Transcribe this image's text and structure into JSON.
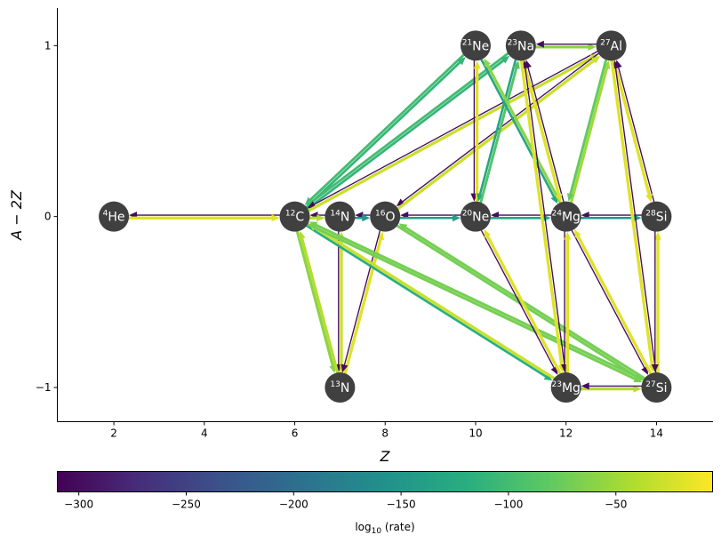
{
  "chart_data": {
    "type": "network",
    "xlabel": "Z",
    "ylabel": "A − 2Z",
    "xlim": [
      0.75,
      15.25
    ],
    "ylim": [
      -1.2,
      1.22
    ],
    "xticks": [
      2,
      4,
      6,
      8,
      10,
      12,
      14
    ],
    "yticks": [
      -1,
      0,
      1
    ],
    "nodes": [
      {
        "id": "he4",
        "iso": "He",
        "mass": "4",
        "z": 2,
        "n_minus_z": 0
      },
      {
        "id": "c12",
        "iso": "C",
        "mass": "12",
        "z": 6,
        "n_minus_z": 0
      },
      {
        "id": "n13",
        "iso": "N",
        "mass": "13",
        "z": 7,
        "n_minus_z": -1
      },
      {
        "id": "n14",
        "iso": "N",
        "mass": "14",
        "z": 7,
        "n_minus_z": 0
      },
      {
        "id": "o16",
        "iso": "O",
        "mass": "16",
        "z": 8,
        "n_minus_z": 0
      },
      {
        "id": "ne20",
        "iso": "Ne",
        "mass": "20",
        "z": 10,
        "n_minus_z": 0
      },
      {
        "id": "ne21",
        "iso": "Ne",
        "mass": "21",
        "z": 10,
        "n_minus_z": 1
      },
      {
        "id": "na23",
        "iso": "Na",
        "mass": "23",
        "z": 11,
        "n_minus_z": 1
      },
      {
        "id": "mg23",
        "iso": "Mg",
        "mass": "23",
        "z": 12,
        "n_minus_z": -1
      },
      {
        "id": "mg24",
        "iso": "Mg",
        "mass": "24",
        "z": 12,
        "n_minus_z": 0
      },
      {
        "id": "al27",
        "iso": "Al",
        "mass": "27",
        "z": 13,
        "n_minus_z": 1
      },
      {
        "id": "si27",
        "iso": "Si",
        "mass": "27",
        "z": 14,
        "n_minus_z": -1
      },
      {
        "id": "si28",
        "iso": "Si",
        "mass": "28",
        "z": 14,
        "n_minus_z": 0
      }
    ],
    "links": [
      {
        "from": "c12",
        "to": "he4",
        "log_rate": -300
      },
      {
        "from": "he4",
        "to": "c12",
        "log_rate": -20
      },
      {
        "from": "n14",
        "to": "c12",
        "log_rate": -300
      },
      {
        "from": "c12",
        "to": "n14",
        "log_rate": -40
      },
      {
        "from": "o16",
        "to": "n14",
        "log_rate": -300
      },
      {
        "from": "n14",
        "to": "o16",
        "log_rate": -150
      },
      {
        "from": "ne20",
        "to": "o16",
        "log_rate": -300
      },
      {
        "from": "o16",
        "to": "ne20",
        "log_rate": -140
      },
      {
        "from": "mg24",
        "to": "ne20",
        "log_rate": -300
      },
      {
        "from": "ne20",
        "to": "mg24",
        "log_rate": -130
      },
      {
        "from": "si28",
        "to": "mg24",
        "log_rate": -300
      },
      {
        "from": "mg24",
        "to": "si28",
        "log_rate": -150
      },
      {
        "from": "n14",
        "to": "n13",
        "log_rate": -300
      },
      {
        "from": "n13",
        "to": "n14",
        "log_rate": -30
      },
      {
        "from": "n13",
        "to": "o16",
        "log_rate": -20
      },
      {
        "from": "o16",
        "to": "n13",
        "log_rate": -300
      },
      {
        "from": "c12",
        "to": "n13",
        "log_rate": -60
      },
      {
        "from": "n13",
        "to": "c12",
        "log_rate": -40
      },
      {
        "from": "c12",
        "to": "mg23",
        "log_rate": -120
      },
      {
        "from": "mg23",
        "to": "c12",
        "log_rate": -30
      },
      {
        "from": "c12",
        "to": "si27",
        "log_rate": -70
      },
      {
        "from": "si27",
        "to": "c12",
        "log_rate": -70
      },
      {
        "from": "o16",
        "to": "si27",
        "log_rate": -70
      },
      {
        "from": "si27",
        "to": "o16",
        "log_rate": -70
      },
      {
        "from": "ne21",
        "to": "c12",
        "log_rate": -100
      },
      {
        "from": "c12",
        "to": "ne21",
        "log_rate": -110
      },
      {
        "from": "na23",
        "to": "c12",
        "log_rate": -100
      },
      {
        "from": "c12",
        "to": "na23",
        "log_rate": -110
      },
      {
        "from": "al27",
        "to": "c12",
        "log_rate": -300
      },
      {
        "from": "c12",
        "to": "al27",
        "log_rate": -30
      },
      {
        "from": "al27",
        "to": "o16",
        "log_rate": -300
      },
      {
        "from": "o16",
        "to": "al27",
        "log_rate": -30
      },
      {
        "from": "ne21",
        "to": "ne20",
        "log_rate": -300
      },
      {
        "from": "ne20",
        "to": "ne21",
        "log_rate": -20
      },
      {
        "from": "na23",
        "to": "ne20",
        "log_rate": -130
      },
      {
        "from": "ne20",
        "to": "na23",
        "log_rate": -90
      },
      {
        "from": "ne21",
        "to": "mg24",
        "log_rate": -130
      },
      {
        "from": "mg24",
        "to": "ne21",
        "log_rate": -60
      },
      {
        "from": "mg24",
        "to": "na23",
        "log_rate": -300
      },
      {
        "from": "na23",
        "to": "mg24",
        "log_rate": -20
      },
      {
        "from": "mg23",
        "to": "na23",
        "log_rate": -300
      },
      {
        "from": "na23",
        "to": "mg23",
        "log_rate": -20
      },
      {
        "from": "na23",
        "to": "al27",
        "log_rate": -60
      },
      {
        "from": "al27",
        "to": "na23",
        "log_rate": -300
      },
      {
        "from": "mg24",
        "to": "al27",
        "log_rate": -50
      },
      {
        "from": "al27",
        "to": "mg24",
        "log_rate": -80
      },
      {
        "from": "si28",
        "to": "al27",
        "log_rate": -300
      },
      {
        "from": "al27",
        "to": "si28",
        "log_rate": -20
      },
      {
        "from": "si27",
        "to": "al27",
        "log_rate": -300
      },
      {
        "from": "al27",
        "to": "si27",
        "log_rate": -20
      },
      {
        "from": "mg24",
        "to": "mg23",
        "log_rate": -300
      },
      {
        "from": "mg23",
        "to": "mg24",
        "log_rate": -20
      },
      {
        "from": "mg23",
        "to": "si27",
        "log_rate": -40
      },
      {
        "from": "si27",
        "to": "mg23",
        "log_rate": -300
      },
      {
        "from": "si27",
        "to": "si28",
        "log_rate": -20
      },
      {
        "from": "si28",
        "to": "si27",
        "log_rate": -300
      },
      {
        "from": "mg24",
        "to": "si27",
        "log_rate": -300
      },
      {
        "from": "si27",
        "to": "mg24",
        "log_rate": -20
      },
      {
        "from": "ne20",
        "to": "mg23",
        "log_rate": -300
      },
      {
        "from": "mg23",
        "to": "ne20",
        "log_rate": -20
      }
    ],
    "colorbar": {
      "colormap": "viridis",
      "range": [
        -310,
        -5
      ],
      "ticks": [
        -300,
        -250,
        -200,
        -150,
        -100,
        -50
      ],
      "label": "log10 (rate)"
    }
  }
}
